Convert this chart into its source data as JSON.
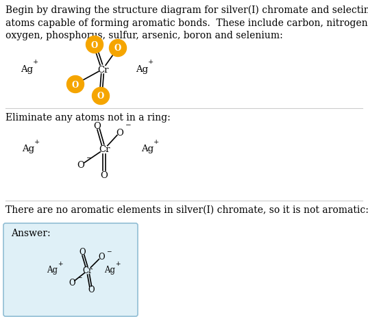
{
  "bg_color": "#ffffff",
  "text_color": "#000000",
  "section1_text": "Begin by drawing the structure diagram for silver(I) chromate and selecting those\natoms capable of forming aromatic bonds.  These include carbon, nitrogen,\noxygen, phosphorus, sulfur, arsenic, boron and selenium:",
  "section2_text": "Eliminate any atoms not in a ring:",
  "section3_text": "There are no aromatic elements in silver(I) chromate, so it is not aromatic:",
  "answer_label": "Answer:",
  "answer_box_color": "#dff0f7",
  "answer_box_edge": "#90bdd4",
  "orange_color": "#f5a500",
  "orange_text_color": "#ffffff",
  "line_color": "#cccccc",
  "font_size_text": 10.0,
  "font_size_atom": 9.0
}
